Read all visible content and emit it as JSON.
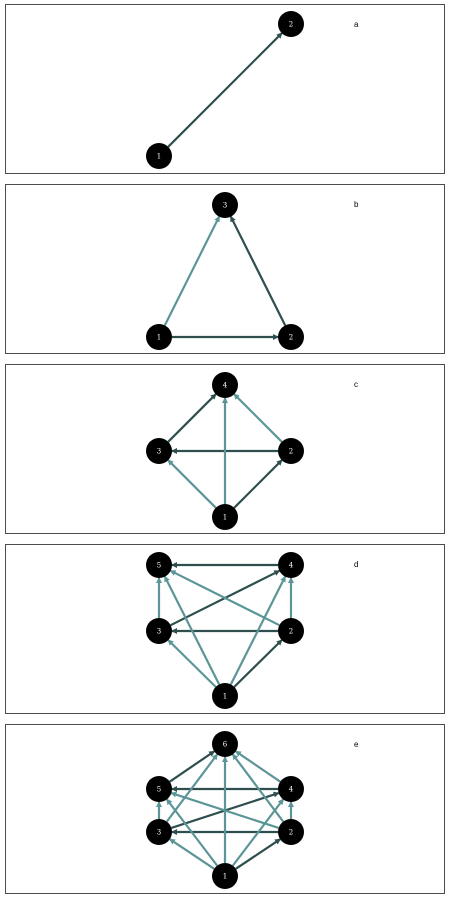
{
  "colors": {
    "edge_dark": "#2f4f4f",
    "edge_light": "#5b9597",
    "node": "#000000",
    "node_text": "#ffffff",
    "frame": "#4d4d4d"
  },
  "panels": [
    {
      "label": "a",
      "nodes": [
        {
          "id": "1"
        },
        {
          "id": "2"
        }
      ],
      "edges": [
        {
          "from": "1",
          "to": "2",
          "style": "dark"
        }
      ]
    },
    {
      "label": "b",
      "nodes": [
        {
          "id": "1"
        },
        {
          "id": "2"
        },
        {
          "id": "3"
        }
      ],
      "edges": [
        {
          "from": "1",
          "to": "2",
          "style": "dark"
        },
        {
          "from": "2",
          "to": "3",
          "style": "dark"
        },
        {
          "from": "1",
          "to": "3",
          "style": "light"
        }
      ]
    },
    {
      "label": "c",
      "nodes": [
        {
          "id": "1"
        },
        {
          "id": "2"
        },
        {
          "id": "3"
        },
        {
          "id": "4"
        }
      ],
      "edges": [
        {
          "from": "1",
          "to": "2",
          "style": "dark"
        },
        {
          "from": "2",
          "to": "3",
          "style": "dark"
        },
        {
          "from": "3",
          "to": "4",
          "style": "dark"
        },
        {
          "from": "1",
          "to": "3",
          "style": "light"
        },
        {
          "from": "1",
          "to": "4",
          "style": "light"
        },
        {
          "from": "2",
          "to": "4",
          "style": "light"
        }
      ]
    },
    {
      "label": "d",
      "nodes": [
        {
          "id": "1"
        },
        {
          "id": "2"
        },
        {
          "id": "3"
        },
        {
          "id": "4"
        },
        {
          "id": "5"
        }
      ],
      "edges": [
        {
          "from": "1",
          "to": "2",
          "style": "dark"
        },
        {
          "from": "2",
          "to": "3",
          "style": "dark"
        },
        {
          "from": "3",
          "to": "4",
          "style": "dark"
        },
        {
          "from": "4",
          "to": "5",
          "style": "dark"
        },
        {
          "from": "1",
          "to": "3",
          "style": "light"
        },
        {
          "from": "1",
          "to": "4",
          "style": "light"
        },
        {
          "from": "1",
          "to": "5",
          "style": "light"
        },
        {
          "from": "2",
          "to": "4",
          "style": "light"
        },
        {
          "from": "2",
          "to": "5",
          "style": "light"
        },
        {
          "from": "3",
          "to": "5",
          "style": "light"
        }
      ]
    },
    {
      "label": "e",
      "nodes": [
        {
          "id": "1"
        },
        {
          "id": "2"
        },
        {
          "id": "3"
        },
        {
          "id": "4"
        },
        {
          "id": "5"
        },
        {
          "id": "6"
        }
      ],
      "edges": [
        {
          "from": "1",
          "to": "2",
          "style": "dark"
        },
        {
          "from": "2",
          "to": "3",
          "style": "dark"
        },
        {
          "from": "3",
          "to": "4",
          "style": "dark"
        },
        {
          "from": "4",
          "to": "5",
          "style": "dark"
        },
        {
          "from": "5",
          "to": "6",
          "style": "dark"
        },
        {
          "from": "1",
          "to": "3",
          "style": "light"
        },
        {
          "from": "1",
          "to": "4",
          "style": "light"
        },
        {
          "from": "1",
          "to": "5",
          "style": "light"
        },
        {
          "from": "1",
          "to": "6",
          "style": "light"
        },
        {
          "from": "2",
          "to": "4",
          "style": "light"
        },
        {
          "from": "2",
          "to": "5",
          "style": "light"
        },
        {
          "from": "2",
          "to": "6",
          "style": "light"
        },
        {
          "from": "3",
          "to": "5",
          "style": "light"
        },
        {
          "from": "3",
          "to": "6",
          "style": "light"
        },
        {
          "from": "4",
          "to": "6",
          "style": "light"
        }
      ]
    }
  ]
}
